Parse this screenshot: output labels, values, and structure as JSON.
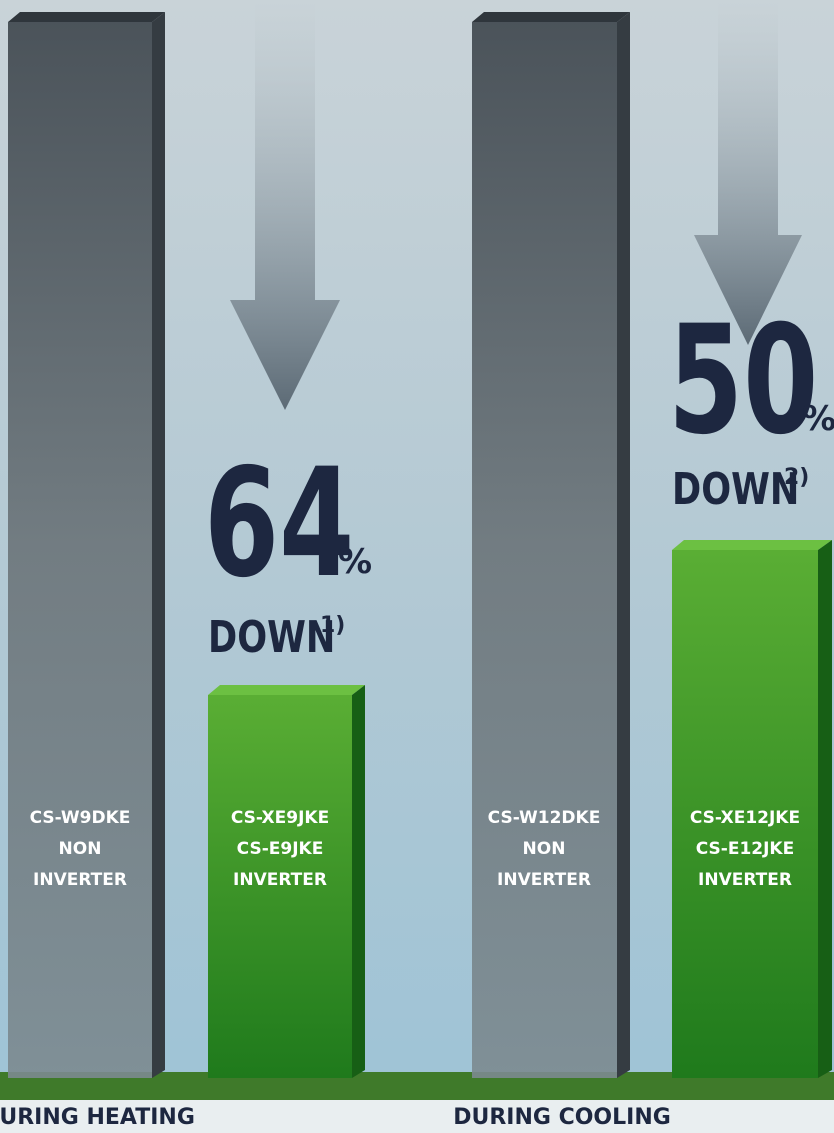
{
  "groups": [
    {
      "label": "DURING HEATING",
      "percent": "64",
      "unit": "%",
      "down": "DOWN",
      "note": "1)",
      "bars": [
        {
          "lines": [
            "CS-W9DKE",
            "NON",
            "INVERTER"
          ]
        },
        {
          "lines": [
            "CS-XE9JKE",
            "CS-E9JKE",
            "INVERTER"
          ]
        }
      ]
    },
    {
      "label": "DURING COOLING",
      "percent": "50",
      "unit": "%",
      "down": "DOWN",
      "note": "2)",
      "bars": [
        {
          "lines": [
            "CS-W12DKE",
            "NON",
            "INVERTER"
          ]
        },
        {
          "lines": [
            "CS-XE12JKE",
            "CS-E12JKE",
            "INVERTER"
          ]
        }
      ]
    }
  ]
}
